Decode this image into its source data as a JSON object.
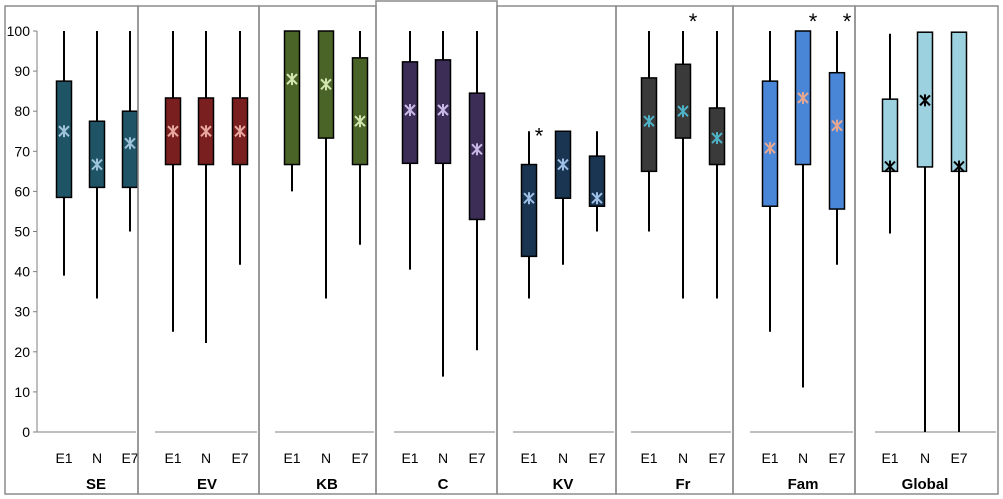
{
  "chart_data": {
    "type": "boxplot",
    "ylim": [
      0,
      100
    ],
    "y_ticks": [
      "0",
      "10",
      "20",
      "30",
      "40",
      "50",
      "60",
      "70",
      "80",
      "90",
      "100"
    ],
    "categories": [
      "E1",
      "N",
      "E7"
    ],
    "panels": [
      {
        "title": "SE",
        "color": "#1f5466",
        "mean_color": "#9fc3da",
        "boxes": [
          {
            "cat": "E1",
            "min": 39,
            "q1": 58.5,
            "q3": 87.5,
            "max": 100,
            "mean": 75
          },
          {
            "cat": "N",
            "min": 33.3,
            "q1": 61,
            "q3": 77.5,
            "max": 100,
            "mean": 66.7
          },
          {
            "cat": "E7",
            "min": 50,
            "q1": 61,
            "q3": 80,
            "max": 100,
            "mean": 72
          }
        ]
      },
      {
        "title": "EV",
        "color": "#7a1f1f",
        "mean_color": "#e8a8a0",
        "boxes": [
          {
            "cat": "E1",
            "min": 25,
            "q1": 66.7,
            "q3": 83.3,
            "max": 100,
            "mean": 75
          },
          {
            "cat": "N",
            "min": 22.2,
            "q1": 66.7,
            "q3": 83.3,
            "max": 100,
            "mean": 75
          },
          {
            "cat": "E7",
            "min": 41.7,
            "q1": 66.7,
            "q3": 83.3,
            "max": 100,
            "mean": 75
          }
        ]
      },
      {
        "title": "KB",
        "color": "#4a6428",
        "mean_color": "#d4e6b0",
        "boxes": [
          {
            "cat": "E1",
            "min": 60,
            "q1": 66.7,
            "q3": 100,
            "max": 100,
            "mean": 88
          },
          {
            "cat": "N",
            "min": 33.3,
            "q1": 73.3,
            "q3": 100,
            "max": 100,
            "mean": 86.7
          },
          {
            "cat": "E7",
            "min": 46.7,
            "q1": 66.7,
            "q3": 93.3,
            "max": 100,
            "mean": 77.5
          }
        ]
      },
      {
        "title": "C",
        "color": "#3b2d55",
        "mean_color": "#c8b8e6",
        "boxes": [
          {
            "cat": "E1",
            "min": 40.5,
            "q1": 67,
            "q3": 92.3,
            "max": 100,
            "mean": 80.3
          },
          {
            "cat": "N",
            "min": 13.8,
            "q1": 67,
            "q3": 92.8,
            "max": 100,
            "mean": 80.3
          },
          {
            "cat": "E7",
            "min": 20.4,
            "q1": 53,
            "q3": 84.5,
            "max": 100,
            "mean": 70.5
          }
        ]
      },
      {
        "title": "KV",
        "color": "#1a3552",
        "mean_color": "#9ec0e6",
        "sig": [
          "E1"
        ],
        "boxes": [
          {
            "cat": "E1",
            "min": 33.3,
            "q1": 43.8,
            "q3": 66.7,
            "max": 75,
            "mean": 58.3
          },
          {
            "cat": "N",
            "min": 41.7,
            "q1": 58.3,
            "q3": 75,
            "max": 75,
            "mean": 66.7
          },
          {
            "cat": "E7",
            "min": 50,
            "q1": 56.3,
            "q3": 68.8,
            "max": 75,
            "mean": 58.3
          }
        ]
      },
      {
        "title": "Fr",
        "color": "#3a3a3a",
        "mean_color": "#4fb3c8",
        "sig": [
          "N"
        ],
        "boxes": [
          {
            "cat": "E1",
            "min": 50,
            "q1": 65,
            "q3": 88.3,
            "max": 100,
            "mean": 77.5
          },
          {
            "cat": "N",
            "min": 33.3,
            "q1": 73.3,
            "q3": 91.7,
            "max": 100,
            "mean": 80
          },
          {
            "cat": "E7",
            "min": 33.3,
            "q1": 66.7,
            "q3": 80.8,
            "max": 100,
            "mean": 73.3
          }
        ]
      },
      {
        "title": "Fam",
        "color": "#4a86d8",
        "mean_color": "#e8a890",
        "sig": [
          "N",
          "E7"
        ],
        "boxes": [
          {
            "cat": "E1",
            "min": 25,
            "q1": 56.3,
            "q3": 87.5,
            "max": 100,
            "mean": 70.8
          },
          {
            "cat": "N",
            "min": 11.1,
            "q1": 66.7,
            "q3": 100,
            "max": 100,
            "mean": 83.3
          },
          {
            "cat": "E7",
            "min": 41.7,
            "q1": 55.6,
            "q3": 89.6,
            "max": 100,
            "mean": 76.4
          }
        ]
      },
      {
        "title": "Global",
        "color": "#9cd2e0",
        "mean_color": "#000000",
        "boxes": [
          {
            "cat": "E1",
            "min": 49.5,
            "q1": 65,
            "q3": 83,
            "max": 99.3,
            "mean": 66.2
          },
          {
            "cat": "N",
            "min": 0,
            "q1": 66.1,
            "q3": 99.7,
            "max": 99.7,
            "mean": 82.7
          },
          {
            "cat": "E7",
            "min": 0,
            "q1": 65,
            "q3": 99.7,
            "max": 99.7,
            "mean": 66.2
          }
        ]
      }
    ],
    "significance_marker": "*",
    "grid": false,
    "legend": "none"
  }
}
